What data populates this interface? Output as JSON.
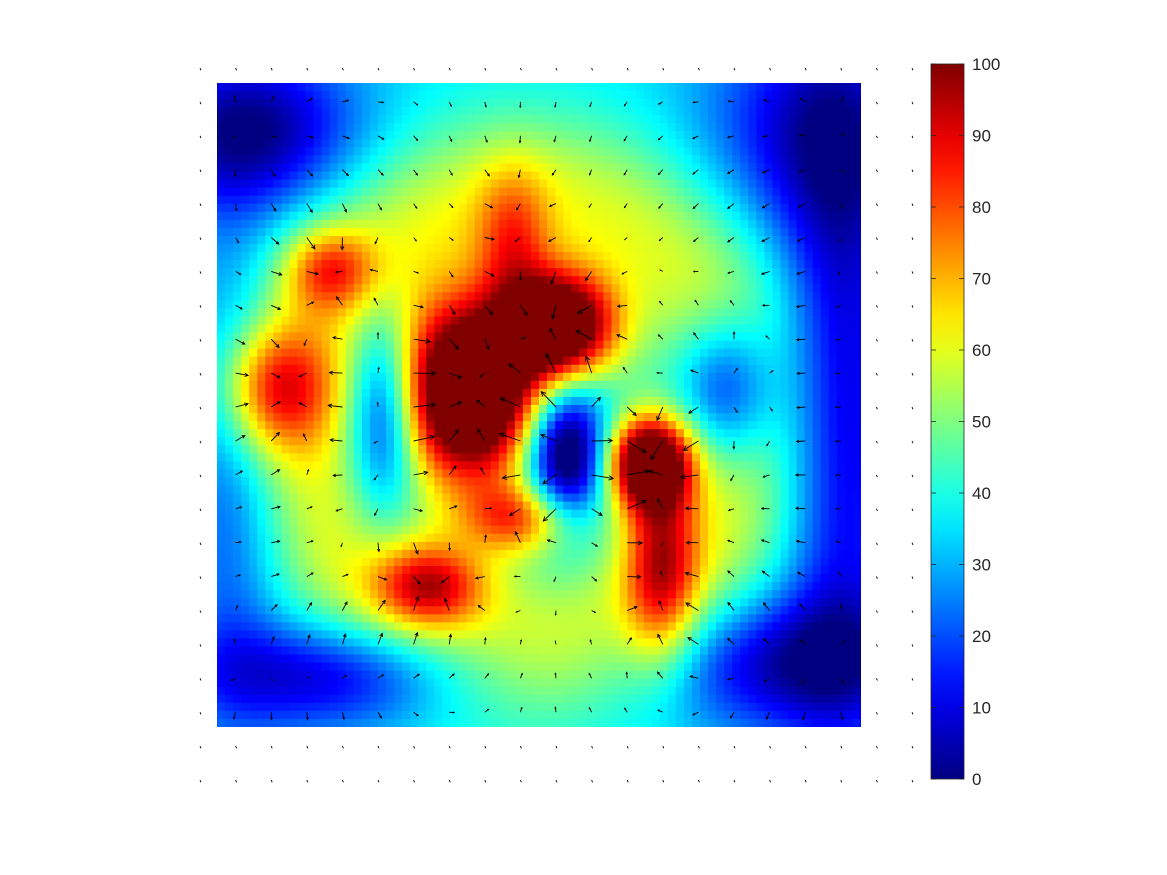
{
  "chart_data": {
    "type": "heatmap",
    "title": "",
    "xlabel": "",
    "ylabel": "",
    "xlim": [
      0,
      20
    ],
    "ylim": [
      0,
      20
    ],
    "colormap": "jet",
    "colorbar": {
      "ticks": [
        0,
        10,
        20,
        30,
        40,
        50,
        60,
        70,
        80,
        90,
        100
      ],
      "tick_labels": [
        "0",
        "10",
        "20",
        "30",
        "40",
        "50",
        "60",
        "70",
        "80",
        "90",
        "100"
      ],
      "range": [
        0,
        100
      ],
      "position": "right"
    },
    "overlay": "quiver",
    "grid": false,
    "quiver_grid": {
      "nx": 21,
      "ny": 22
    },
    "hotspots": [
      {
        "x": 7.9,
        "y": 9.6,
        "value": 100,
        "sx": 1.6,
        "sy": 2.0
      },
      {
        "x": 10.7,
        "y": 7.6,
        "value": 80,
        "sx": 1.2,
        "sy": 1.2
      },
      {
        "x": 9.2,
        "y": 5.0,
        "value": 25,
        "sx": 0.8,
        "sy": 1.6
      },
      {
        "x": 13.4,
        "y": 11.8,
        "value": 80,
        "sx": 0.9,
        "sy": 1.0
      },
      {
        "x": 13.8,
        "y": 15.0,
        "value": 40,
        "sx": 0.8,
        "sy": 2.0
      },
      {
        "x": 6.6,
        "y": 15.6,
        "value": 40,
        "sx": 1.2,
        "sy": 0.9
      },
      {
        "x": 1.8,
        "y": 9.5,
        "value": 40,
        "sx": 1.2,
        "sy": 1.4
      },
      {
        "x": 3.5,
        "y": 5.8,
        "value": 30,
        "sx": 1.0,
        "sy": 0.9
      },
      {
        "x": 9.5,
        "y": 13.5,
        "value": 40,
        "sx": 1.3,
        "sy": 0.8
      },
      {
        "x": 10.8,
        "y": 11.5,
        "value": -55,
        "sx": 0.9,
        "sy": 1.7
      },
      {
        "x": 15.8,
        "y": 9.5,
        "value": -35,
        "sx": 1.1,
        "sy": 1.6
      },
      {
        "x": 5.2,
        "y": 10.2,
        "value": -40,
        "sx": 0.8,
        "sy": 2.2
      },
      {
        "x": 1.0,
        "y": 1.5,
        "value": -35,
        "sx": 2.4,
        "sy": 1.8
      },
      {
        "x": 3.6,
        "y": 18.4,
        "value": -30,
        "sx": 3.0,
        "sy": 1.2
      },
      {
        "x": 17.5,
        "y": 18.0,
        "value": -30,
        "sx": 3.0,
        "sy": 1.5
      },
      {
        "x": 19.4,
        "y": 10.0,
        "value": -30,
        "sx": 1.4,
        "sy": 7.0
      },
      {
        "x": 18.5,
        "y": 1.5,
        "value": -25,
        "sx": 2.5,
        "sy": 2.5
      },
      {
        "x": 0.5,
        "y": 12.0,
        "value": -20,
        "sx": 1.2,
        "sy": 5.0
      }
    ],
    "ring": {
      "center": [
        9.5,
        10.5
      ],
      "radius": 6.8,
      "width": 2.0,
      "value": 25,
      "base": 35
    }
  }
}
